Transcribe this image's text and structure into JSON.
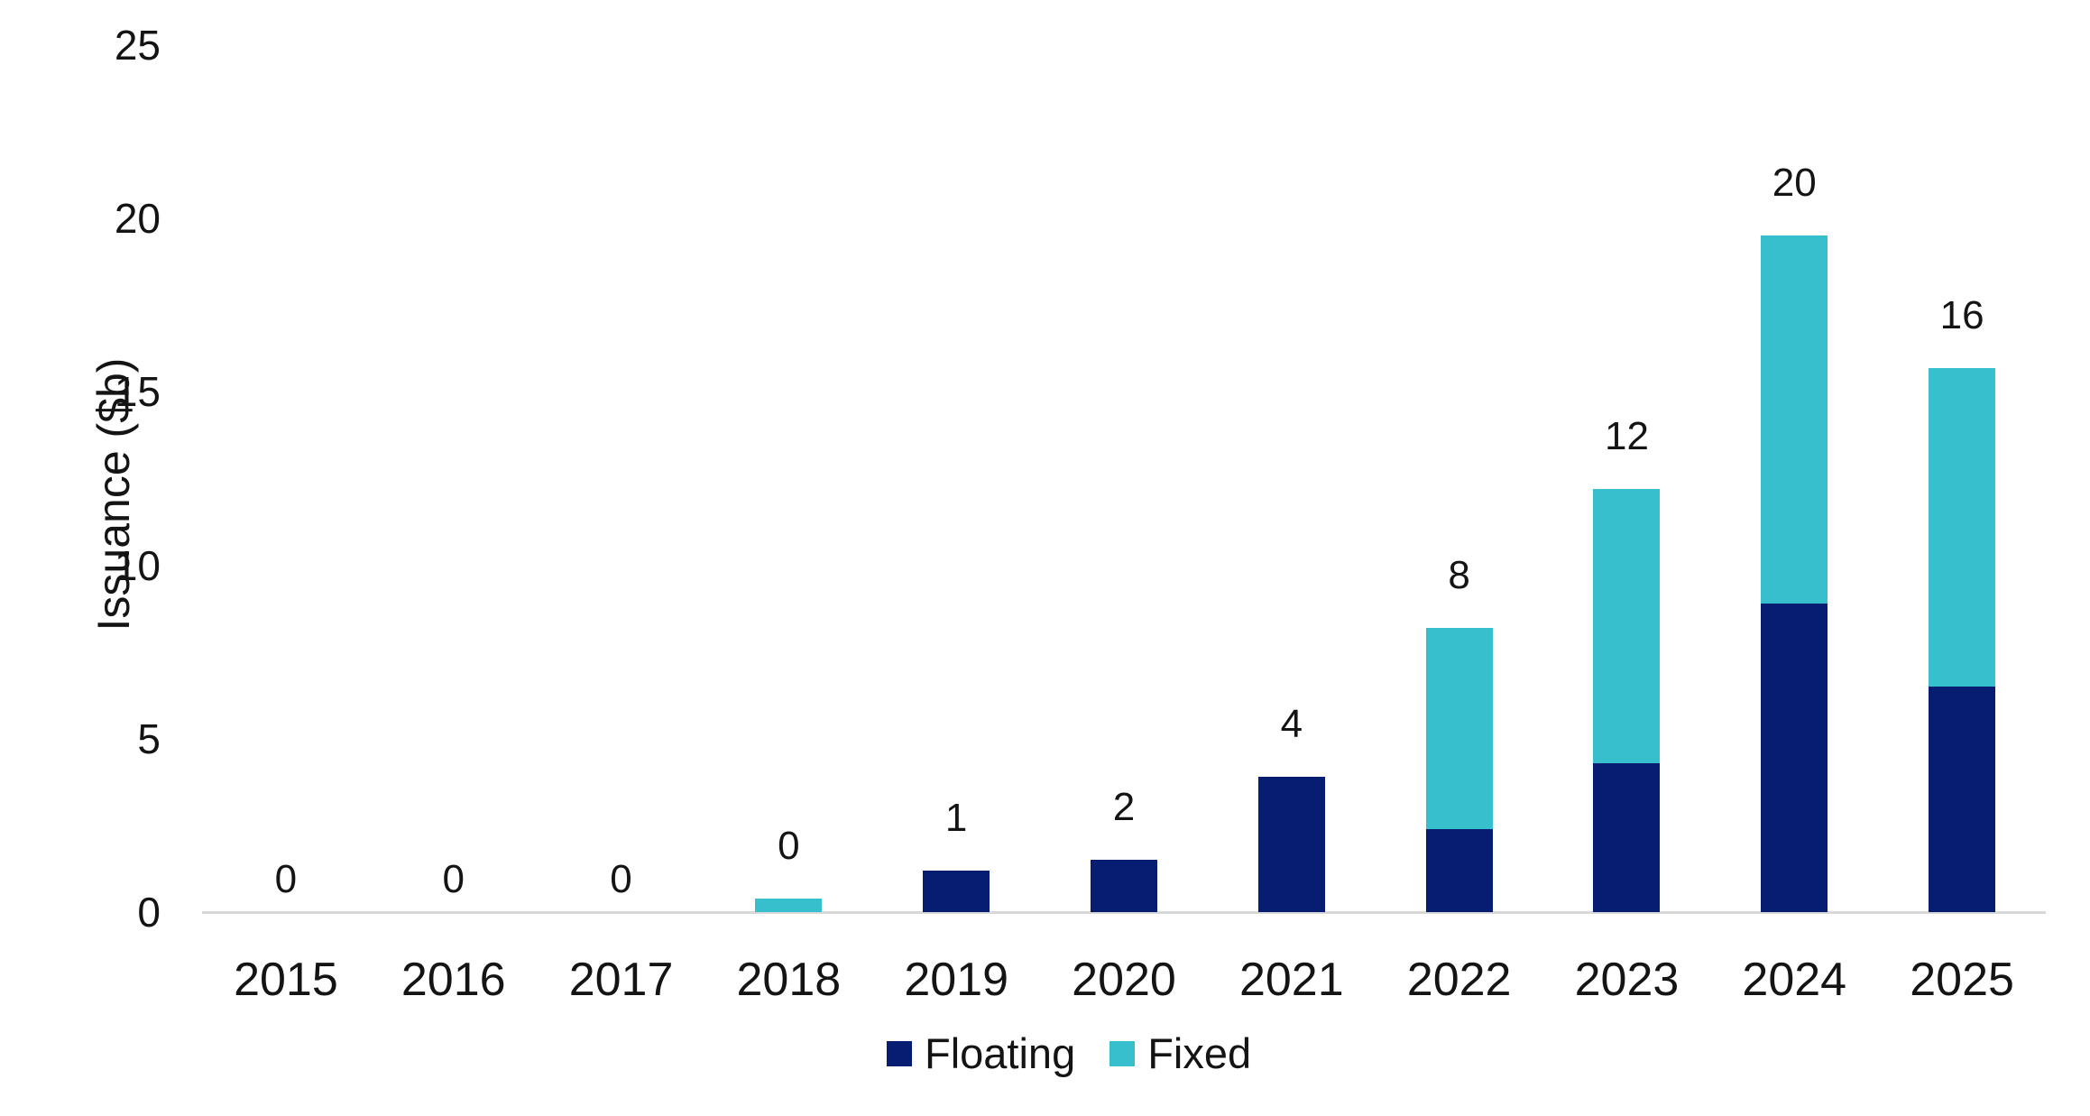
{
  "chart_data": {
    "type": "bar",
    "stacked": true,
    "title": "",
    "ylabel": "Issuance ($b)",
    "xlabel": "",
    "categories": [
      "2015",
      "2016",
      "2017",
      "2018",
      "2019",
      "2020",
      "2021",
      "2022",
      "2023",
      "2024",
      "2025"
    ],
    "series": [
      {
        "name": "Floating",
        "color": "#071d71",
        "values": [
          0,
          0,
          0,
          0,
          1.2,
          1.5,
          3.9,
          2.4,
          4.3,
          8.9,
          6.5
        ]
      },
      {
        "name": "Fixed",
        "color": "#38bfce",
        "values": [
          0,
          0,
          0,
          0.4,
          0,
          0,
          0,
          5.8,
          7.9,
          10.6,
          9.2
        ]
      }
    ],
    "bar_total_labels": [
      "0",
      "0",
      "0",
      "0",
      "1",
      "2",
      "4",
      "8",
      "12",
      "20",
      "16"
    ],
    "y_ticks": [
      0,
      5,
      10,
      15,
      20,
      25
    ],
    "ylim": [
      0,
      25
    ],
    "grid": false,
    "legend_position": "bottom",
    "axis_line_color": "#d8d8d8",
    "text_color": "#141414",
    "background": "#ffffff"
  }
}
